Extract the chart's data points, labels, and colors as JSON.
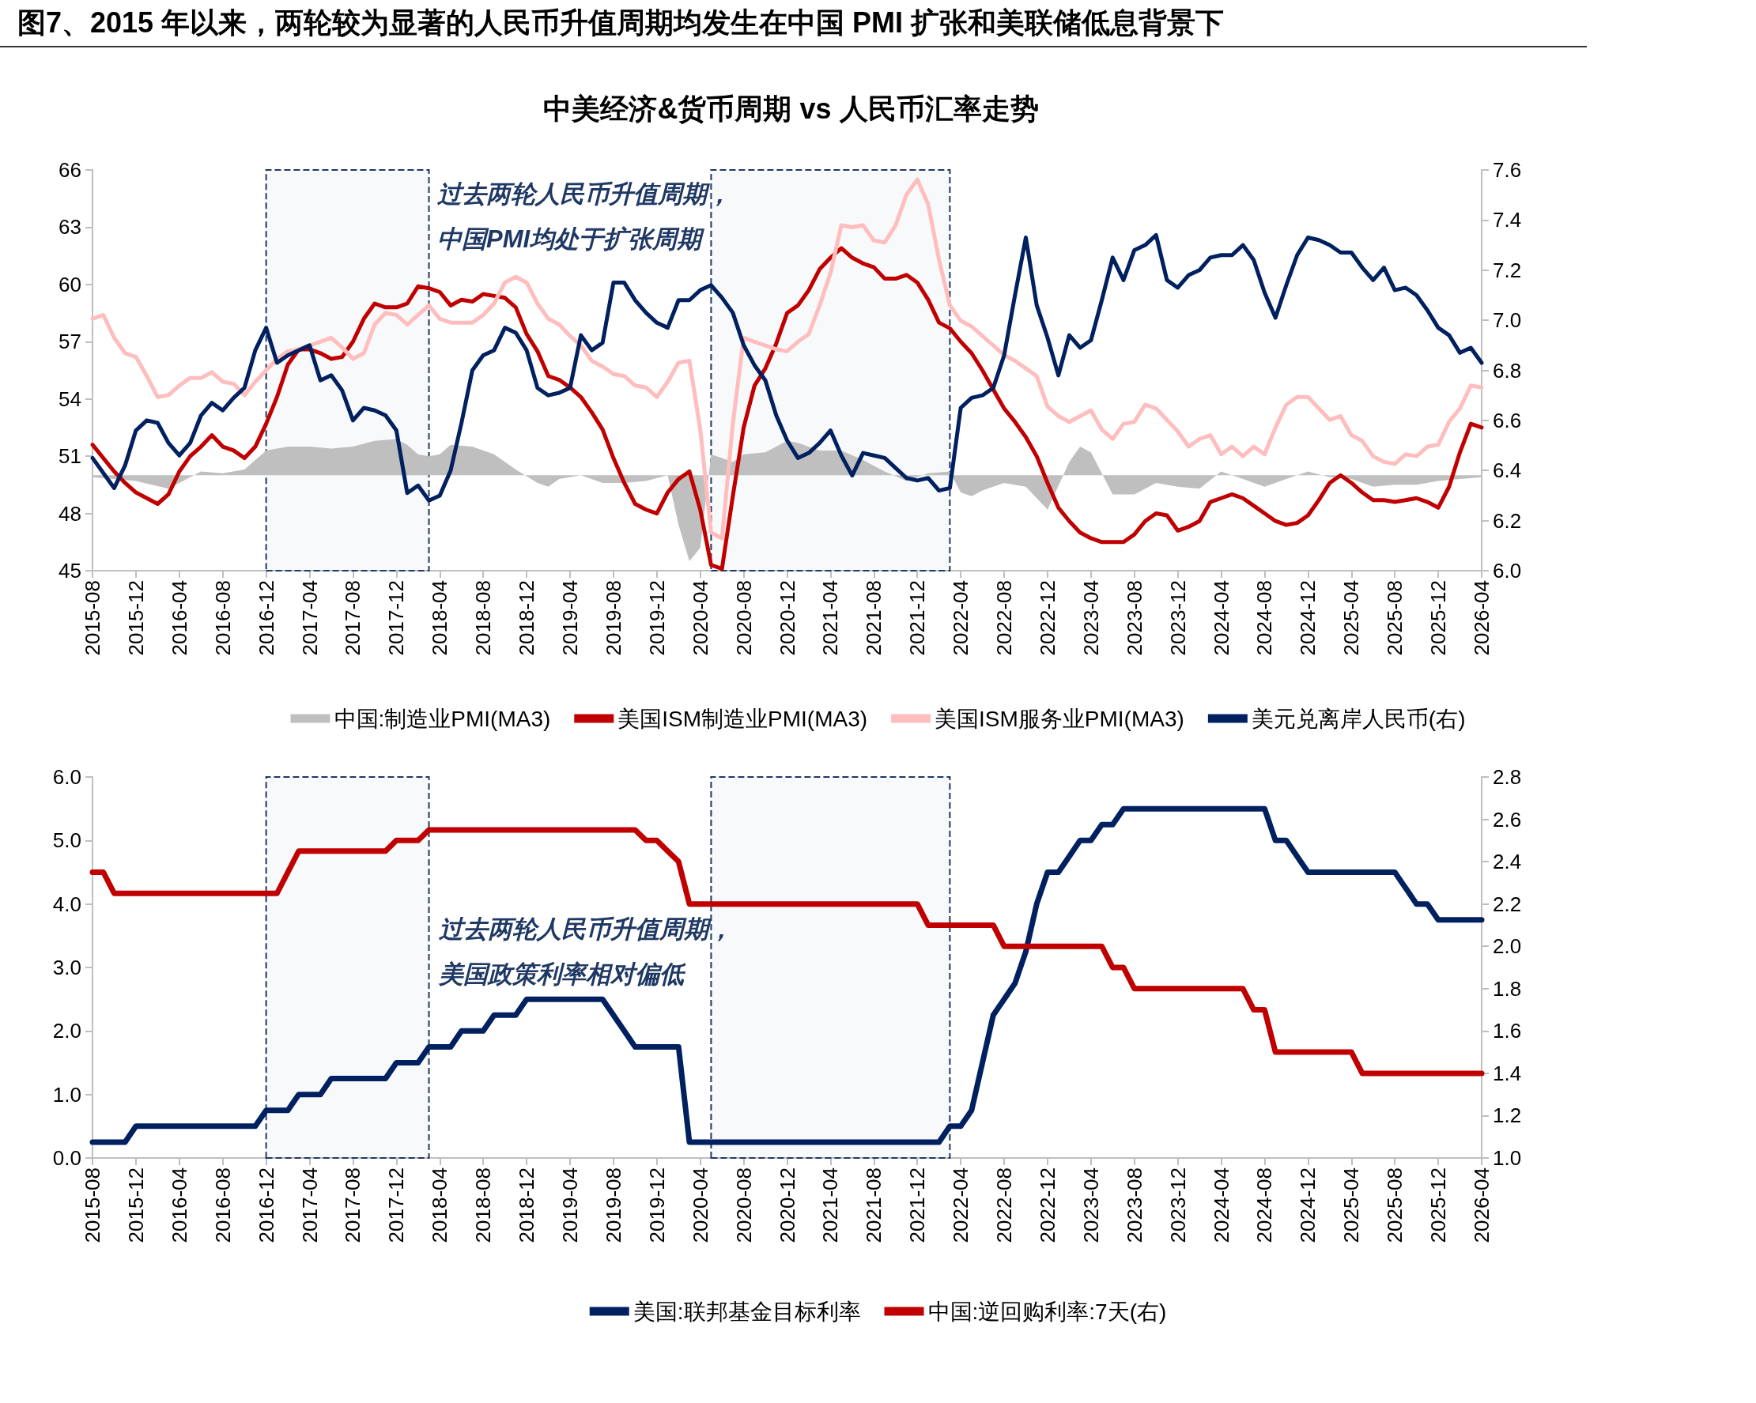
{
  "chart_data": [
    {
      "type": "line",
      "title": "图7、2015 年以来，两轮较为显著的人民币升值周期均发生在中国 PMI 扩张和美联储低息背景下",
      "subtitle": "中美经济&货币周期 vs 人民币汇率走势",
      "x": [
        "2015-08",
        "2015-09",
        "2015-10",
        "2015-11",
        "2015-12",
        "2016-01",
        "2016-02",
        "2016-03",
        "2016-04",
        "2016-05",
        "2016-06",
        "2016-07",
        "2016-08",
        "2016-09",
        "2016-10",
        "2016-11",
        "2016-12",
        "2017-01",
        "2017-02",
        "2017-03",
        "2017-04",
        "2017-05",
        "2017-06",
        "2017-07",
        "2017-08",
        "2017-09",
        "2017-10",
        "2017-11",
        "2017-12",
        "2018-01",
        "2018-02",
        "2018-03",
        "2018-04",
        "2018-05",
        "2018-06",
        "2018-07",
        "2018-08",
        "2018-09",
        "2018-10",
        "2018-11",
        "2018-12",
        "2019-01",
        "2019-02",
        "2019-03",
        "2019-04",
        "2019-05",
        "2019-06",
        "2019-07",
        "2019-08",
        "2019-09",
        "2019-10",
        "2019-11",
        "2019-12",
        "2020-01",
        "2020-02",
        "2020-03",
        "2020-04",
        "2020-05",
        "2020-06",
        "2020-07",
        "2020-08",
        "2020-09",
        "2020-10",
        "2020-11",
        "2020-12",
        "2021-01",
        "2021-02",
        "2021-03",
        "2021-04",
        "2021-05",
        "2021-06",
        "2021-07",
        "2021-08",
        "2021-09",
        "2021-10",
        "2021-11",
        "2021-12",
        "2022-01",
        "2022-02",
        "2022-03",
        "2022-04",
        "2022-05",
        "2022-06",
        "2022-07",
        "2022-08",
        "2022-09",
        "2022-10",
        "2022-11",
        "2022-12",
        "2023-01",
        "2023-02",
        "2023-03",
        "2023-04",
        "2023-05",
        "2023-06",
        "2023-07",
        "2023-08",
        "2023-09",
        "2023-10",
        "2023-11",
        "2023-12",
        "2024-01",
        "2024-02",
        "2024-03",
        "2024-04",
        "2024-05",
        "2024-06",
        "2024-07",
        "2024-08",
        "2024-09",
        "2024-10",
        "2024-11",
        "2024-12",
        "2025-01",
        "2025-02",
        "2025-03",
        "2025-04",
        "2025-05",
        "2025-06",
        "2025-07",
        "2025-08",
        "2025-09",
        "2025-10",
        "2025-11",
        "2025-12",
        "2026-01",
        "2026-02",
        "2026-03",
        "2026-04"
      ],
      "series": [
        {
          "name": "中国:制造业PMI(MA3)",
          "type": "area",
          "color": "#bfbfbf",
          "x": [
            "2015-08",
            "2015-10",
            "2015-12",
            "2016-03",
            "2016-04",
            "2016-06",
            "2016-08",
            "2016-10",
            "2016-12",
            "2017-02",
            "2017-04",
            "2017-06",
            "2017-08",
            "2017-10",
            "2017-12",
            "2018-01",
            "2018-02",
            "2018-03",
            "2018-04",
            "2018-05",
            "2018-07",
            "2018-09",
            "2018-11",
            "2019-01",
            "2019-02",
            "2019-03",
            "2019-05",
            "2019-07",
            "2019-09",
            "2019-11",
            "2020-01",
            "2020-02",
            "2020-03",
            "2020-04",
            "2020-05",
            "2020-06",
            "2020-07",
            "2020-08",
            "2020-10",
            "2020-12",
            "2021-01",
            "2021-03",
            "2021-05",
            "2021-07",
            "2021-09",
            "2021-11",
            "2022-01",
            "2022-03",
            "2022-04",
            "2022-05",
            "2022-06",
            "2022-08",
            "2022-10",
            "2022-12",
            "2023-02",
            "2023-03",
            "2023-04",
            "2023-05",
            "2023-06",
            "2023-08",
            "2023-10",
            "2023-12",
            "2024-02",
            "2024-04",
            "2024-06",
            "2024-08",
            "2024-10",
            "2024-12",
            "2025-02",
            "2025-04",
            "2025-06",
            "2025-08",
            "2025-10",
            "2025-12",
            "2026-02",
            "2026-04"
          ],
          "values": [
            49.9,
            49.8,
            49.7,
            49.3,
            49.6,
            50.2,
            50.1,
            50.3,
            51.3,
            51.5,
            51.5,
            51.4,
            51.5,
            51.8,
            51.9,
            51.6,
            51.1,
            51.0,
            51.1,
            51.6,
            51.5,
            51.1,
            50.3,
            49.6,
            49.4,
            49.8,
            50.0,
            49.6,
            49.6,
            49.7,
            50.0,
            47.4,
            45.5,
            46.2,
            51.1,
            50.9,
            50.7,
            51.1,
            51.2,
            51.8,
            51.7,
            51.3,
            51.3,
            50.8,
            50.2,
            49.7,
            50.1,
            50.2,
            49.1,
            48.9,
            49.2,
            49.6,
            49.4,
            48.2,
            50.7,
            51.5,
            51.2,
            50.1,
            49.0,
            49.0,
            49.6,
            49.4,
            49.3,
            50.2,
            49.8,
            49.4,
            49.8,
            50.2,
            49.9,
            49.8,
            49.4,
            49.5,
            49.5,
            49.7,
            49.8,
            49.9
          ]
        },
        {
          "name": "美国ISM制造业PMI(MA3)",
          "color": "#c00000",
          "values": [
            51.6,
            50.9,
            50.2,
            49.6,
            49.1,
            48.8,
            48.5,
            49.0,
            50.2,
            51.0,
            51.5,
            52.1,
            51.5,
            51.3,
            50.9,
            51.5,
            52.7,
            54.1,
            55.8,
            56.6,
            56.6,
            56.4,
            56.1,
            56.2,
            57.0,
            58.2,
            59.0,
            58.8,
            58.8,
            59.0,
            59.9,
            59.8,
            59.6,
            58.9,
            59.2,
            59.1,
            59.5,
            59.4,
            59.3,
            58.8,
            57.4,
            56.5,
            55.2,
            55.0,
            54.6,
            54.1,
            53.3,
            52.4,
            50.9,
            49.6,
            48.5,
            48.2,
            48.0,
            49.1,
            49.8,
            50.2,
            48.2,
            45.3,
            45.1,
            48.9,
            52.5,
            54.7,
            55.6,
            56.9,
            58.5,
            58.9,
            59.7,
            60.8,
            61.4,
            61.9,
            61.4,
            61.1,
            60.9,
            60.3,
            60.3,
            60.5,
            60.1,
            59.2,
            58.0,
            57.7,
            57.0,
            56.4,
            55.5,
            54.5,
            53.5,
            52.8,
            52.0,
            51.0,
            49.6,
            48.3,
            47.6,
            47.0,
            46.7,
            46.5,
            46.5,
            46.5,
            46.9,
            47.6,
            48.0,
            47.9,
            47.1,
            47.3,
            47.6,
            48.6,
            48.8,
            49.0,
            48.8,
            48.4,
            48.0,
            47.6,
            47.4,
            47.5,
            47.9,
            48.7,
            49.6,
            50.0,
            49.6,
            49.1,
            48.7,
            48.7,
            48.6,
            48.7,
            48.8,
            48.6,
            48.3,
            49.4,
            51.2,
            52.7,
            52.5
          ]
        },
        {
          "name": "美国ISM服务业PMI(MA3)",
          "color": "#ffbdbd",
          "values": [
            58.2,
            58.4,
            57.2,
            56.4,
            56.2,
            55.2,
            54.1,
            54.2,
            54.7,
            55.1,
            55.1,
            55.4,
            54.9,
            54.8,
            54.2,
            54.9,
            55.5,
            56.1,
            56.5,
            56.6,
            56.8,
            57.0,
            57.2,
            56.7,
            56.1,
            56.4,
            57.9,
            58.5,
            58.4,
            57.9,
            58.4,
            58.9,
            58.2,
            58.0,
            58.0,
            58.0,
            58.4,
            59.0,
            60.1,
            60.4,
            60.1,
            59.0,
            58.2,
            57.9,
            57.3,
            56.8,
            56.0,
            55.7,
            55.3,
            55.2,
            54.7,
            54.6,
            54.1,
            54.9,
            55.9,
            56.0,
            52.4,
            47.0,
            46.7,
            52.7,
            57.2,
            57.0,
            56.8,
            56.6,
            56.5,
            57.0,
            57.4,
            58.9,
            60.6,
            63.1,
            63.0,
            63.1,
            62.3,
            62.2,
            63.1,
            64.7,
            65.5,
            64.2,
            61.3,
            58.9,
            58.1,
            57.8,
            57.3,
            56.8,
            56.3,
            56.0,
            55.6,
            55.2,
            53.6,
            53.1,
            52.8,
            53.1,
            53.4,
            52.4,
            51.9,
            52.7,
            52.8,
            53.7,
            53.5,
            52.9,
            52.3,
            51.5,
            51.9,
            52.1,
            51.1,
            51.5,
            51.0,
            51.5,
            51.1,
            52.5,
            53.7,
            54.1,
            54.1,
            53.5,
            52.9,
            53.1,
            52.1,
            51.8,
            51.0,
            50.7,
            50.6,
            51.1,
            51.0,
            51.5,
            51.6,
            52.8,
            53.5,
            54.7,
            54.6
          ]
        },
        {
          "name": "美元兑离岸人民币(右)",
          "color": "#002060",
          "axis": "y2",
          "values": [
            6.45,
            6.39,
            6.33,
            6.42,
            6.56,
            6.6,
            6.59,
            6.51,
            6.46,
            6.51,
            6.62,
            6.67,
            6.64,
            6.69,
            6.73,
            6.88,
            6.97,
            6.83,
            6.86,
            6.88,
            6.9,
            6.76,
            6.78,
            6.72,
            6.6,
            6.65,
            6.64,
            6.62,
            6.56,
            6.31,
            6.34,
            6.28,
            6.3,
            6.4,
            6.59,
            6.8,
            6.86,
            6.88,
            6.97,
            6.95,
            6.88,
            6.73,
            6.7,
            6.71,
            6.73,
            6.94,
            6.88,
            6.91,
            7.15,
            7.15,
            7.08,
            7.03,
            6.99,
            6.97,
            7.08,
            7.08,
            7.12,
            7.14,
            7.09,
            7.03,
            6.9,
            6.82,
            6.76,
            6.62,
            6.52,
            6.45,
            6.47,
            6.51,
            6.56,
            6.46,
            6.38,
            6.47,
            6.46,
            6.45,
            6.41,
            6.37,
            6.36,
            6.37,
            6.32,
            6.33,
            6.65,
            6.69,
            6.7,
            6.73,
            6.86,
            7.1,
            7.33,
            7.06,
            6.93,
            6.78,
            6.94,
            6.89,
            6.92,
            7.08,
            7.25,
            7.16,
            7.28,
            7.3,
            7.34,
            7.16,
            7.13,
            7.18,
            7.2,
            7.25,
            7.26,
            7.26,
            7.3,
            7.24,
            7.11,
            7.01,
            7.14,
            7.26,
            7.33,
            7.32,
            7.3,
            7.27,
            7.27,
            7.21,
            7.16,
            7.21,
            7.12,
            7.13,
            7.1,
            7.04,
            6.97,
            6.94,
            6.87,
            6.89,
            6.83
          ]
        }
      ],
      "xlim": [
        "2015-08",
        "2026-04"
      ],
      "xticks": [
        "2015-08",
        "2015-12",
        "2016-04",
        "2016-08",
        "2016-12",
        "2017-04",
        "2017-08",
        "2017-12",
        "2018-04",
        "2018-08",
        "2018-12",
        "2019-04",
        "2019-08",
        "2019-12",
        "2020-04",
        "2020-08",
        "2020-12",
        "2021-04",
        "2021-08",
        "2021-12",
        "2022-04",
        "2022-08",
        "2022-12",
        "2023-04",
        "2023-08",
        "2023-12",
        "2024-04",
        "2024-08",
        "2024-12",
        "2025-04",
        "2025-08",
        "2025-12",
        "2026-04"
      ],
      "ylim": [
        45,
        66
      ],
      "yticks": [
        45,
        48,
        51,
        54,
        57,
        60,
        63,
        66
      ],
      "y2lim": [
        6.0,
        7.6
      ],
      "y2ticks": [
        {
          "value": 6.0,
          "label": "6.0"
        },
        {
          "value": 6.2,
          "label": "6.2"
        },
        {
          "value": 6.4,
          "label": "6.4"
        },
        {
          "value": 6.6,
          "label": "6.6"
        },
        {
          "value": 6.8,
          "label": "6.8"
        },
        {
          "value": 7.0,
          "label": "7.0"
        },
        {
          "value": 7.2,
          "label": "7.2"
        },
        {
          "value": 7.4,
          "label": "7.4"
        },
        {
          "value": 7.6,
          "label": "7.6"
        }
      ],
      "bands": [
        {
          "axis": "x",
          "from": "2016-12",
          "to": "2018-03",
          "color": "#1f3864"
        },
        {
          "axis": "x",
          "from": "2020-05",
          "to": "2022-03",
          "color": "#1f3864"
        }
      ],
      "annotations": [
        "过去两轮人民币升值周期，",
        "中国PMI均处于扩张周期"
      ],
      "legend": "bottom",
      "marker": "none"
    },
    {
      "type": "line",
      "series": [
        {
          "name": "美国:联邦基金目标利率",
          "color": "#002060",
          "x": [
            "2015-08",
            "2015-11",
            "2015-12",
            "2016-11",
            "2016-12",
            "2017-02",
            "2017-03",
            "2017-05",
            "2017-06",
            "2017-11",
            "2017-12",
            "2018-02",
            "2018-03",
            "2018-05",
            "2018-06",
            "2018-08",
            "2018-09",
            "2018-11",
            "2018-12",
            "2019-07",
            "2019-08",
            "2019-09",
            "2019-10",
            "2020-02",
            "2020-03",
            "2022-02",
            "2022-03",
            "2022-04",
            "2022-05",
            "2022-06",
            "2022-07",
            "2022-08",
            "2022-09",
            "2022-10",
            "2022-11",
            "2022-12",
            "2023-01",
            "2023-02",
            "2023-03",
            "2023-04",
            "2023-05",
            "2023-06",
            "2023-07",
            "2024-08",
            "2024-09",
            "2024-10",
            "2024-11",
            "2024-12",
            "2025-08",
            "2025-09",
            "2025-10",
            "2025-11",
            "2025-12",
            "2026-04"
          ],
          "values": [
            0.25,
            0.25,
            0.5,
            0.5,
            0.75,
            0.75,
            1.0,
            1.0,
            1.25,
            1.25,
            1.5,
            1.5,
            1.75,
            1.75,
            2.0,
            2.0,
            2.25,
            2.25,
            2.5,
            2.5,
            2.25,
            2.0,
            1.75,
            1.75,
            0.25,
            0.25,
            0.5,
            0.5,
            0.75,
            1.5,
            2.25,
            2.5,
            2.75,
            3.25,
            4.0,
            4.5,
            4.5,
            4.75,
            5.0,
            5.0,
            5.25,
            5.25,
            5.5,
            5.5,
            5.0,
            5.0,
            4.75,
            4.5,
            4.5,
            4.25,
            4.0,
            4.0,
            3.75,
            3.75
          ]
        },
        {
          "name": "中国:逆回购利率:7天(右)",
          "color": "#c00000",
          "axis": "y2",
          "x": [
            "2015-08",
            "2015-09",
            "2015-10",
            "2017-01",
            "2017-02",
            "2017-03",
            "2017-11",
            "2017-12",
            "2018-02",
            "2018-03",
            "2019-10",
            "2019-11",
            "2019-12",
            "2020-01",
            "2020-02",
            "2020-03",
            "2021-12",
            "2022-01",
            "2022-07",
            "2022-08",
            "2023-05",
            "2023-06",
            "2023-07",
            "2023-08",
            "2024-06",
            "2024-07",
            "2024-08",
            "2024-09",
            "2025-04",
            "2025-05",
            "2026-04"
          ],
          "values": [
            2.35,
            2.35,
            2.25,
            2.25,
            2.35,
            2.45,
            2.45,
            2.5,
            2.5,
            2.55,
            2.55,
            2.5,
            2.5,
            2.45,
            2.4,
            2.2,
            2.2,
            2.1,
            2.1,
            2.0,
            2.0,
            1.9,
            1.9,
            1.8,
            1.8,
            1.7,
            1.7,
            1.5,
            1.5,
            1.4,
            1.4
          ]
        }
      ],
      "xlim": [
        "2015-08",
        "2026-04"
      ],
      "xticks": [
        "2015-08",
        "2015-12",
        "2016-04",
        "2016-08",
        "2016-12",
        "2017-04",
        "2017-08",
        "2017-12",
        "2018-04",
        "2018-08",
        "2018-12",
        "2019-04",
        "2019-08",
        "2019-12",
        "2020-04",
        "2020-08",
        "2020-12",
        "2021-04",
        "2021-08",
        "2021-12",
        "2022-04",
        "2022-08",
        "2022-12",
        "2023-04",
        "2023-08",
        "2023-12",
        "2024-04",
        "2024-08",
        "2024-12",
        "2025-04",
        "2025-08",
        "2025-12",
        "2026-04"
      ],
      "ylim": [
        0,
        6
      ],
      "yticks": [
        {
          "value": 0,
          "label": "0.0"
        },
        {
          "value": 1,
          "label": "1.0"
        },
        {
          "value": 2,
          "label": "2.0"
        },
        {
          "value": 3,
          "label": "3.0"
        },
        {
          "value": 4,
          "label": "4.0"
        },
        {
          "value": 5,
          "label": "5.0"
        },
        {
          "value": 6,
          "label": "6.0"
        }
      ],
      "y2lim": [
        1.0,
        2.8
      ],
      "y2ticks": [
        {
          "value": 1.0,
          "label": "1.0"
        },
        {
          "value": 1.2,
          "label": "1.2"
        },
        {
          "value": 1.4,
          "label": "1.4"
        },
        {
          "value": 1.6,
          "label": "1.6"
        },
        {
          "value": 1.8,
          "label": "1.8"
        },
        {
          "value": 2.0,
          "label": "2.0"
        },
        {
          "value": 2.2,
          "label": "2.2"
        },
        {
          "value": 2.4,
          "label": "2.4"
        },
        {
          "value": 2.6,
          "label": "2.6"
        },
        {
          "value": 2.8,
          "label": "2.8"
        }
      ],
      "bands": [
        {
          "axis": "x",
          "from": "2016-12",
          "to": "2018-03",
          "color": "#1f3864"
        },
        {
          "axis": "x",
          "from": "2020-05",
          "to": "2022-03",
          "color": "#1f3864"
        }
      ],
      "annotations": [
        "过去两轮人民币升值周期，",
        "美国政策利率相对偏低"
      ],
      "legend": "bottom",
      "marker": "none"
    }
  ]
}
